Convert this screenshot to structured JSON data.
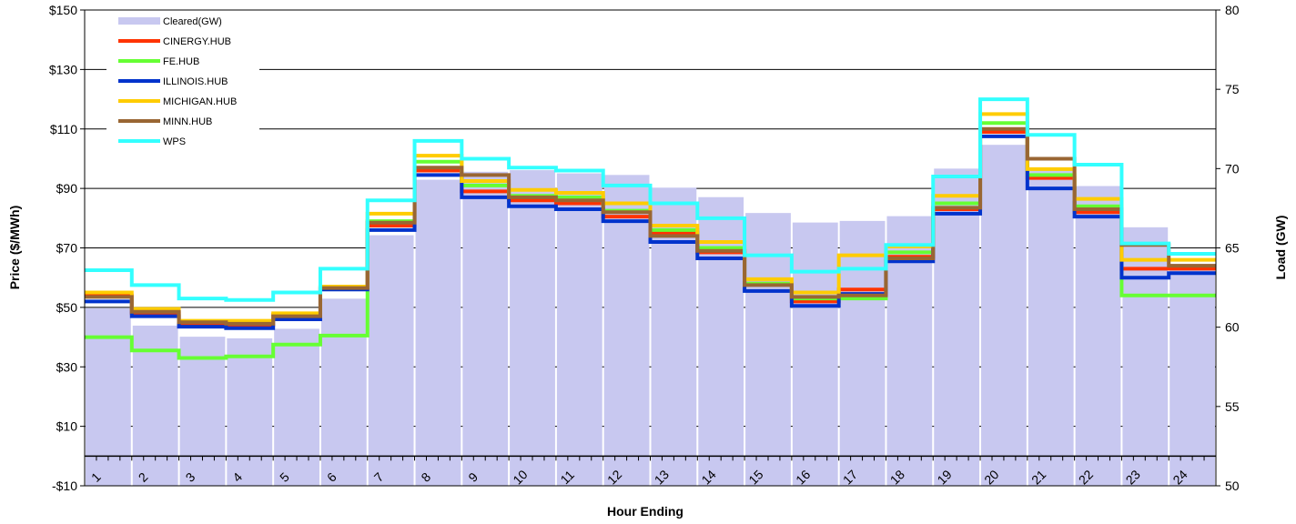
{
  "chart_data": {
    "type": "line",
    "xlabel": "Hour Ending",
    "ylabel": "Price ($/MWh)",
    "y2label": "Load (GW)",
    "ylim": [
      -10,
      150
    ],
    "y2lim": [
      50,
      80
    ],
    "xlim": [
      0.5,
      24.5
    ],
    "y_ticks": [
      "-$10",
      "$10",
      "$30",
      "$50",
      "$70",
      "$90",
      "$110",
      "$130",
      "$150"
    ],
    "y_tick_values": [
      -10,
      10,
      30,
      50,
      70,
      90,
      110,
      130,
      150
    ],
    "y2_ticks": [
      "50",
      "55",
      "60",
      "65",
      "70",
      "75",
      "80"
    ],
    "y2_tick_values": [
      50,
      55,
      60,
      65,
      70,
      75,
      80
    ],
    "categories": [
      "1",
      "2",
      "3",
      "4",
      "5",
      "6",
      "7",
      "8",
      "9",
      "10",
      "11",
      "12",
      "13",
      "14",
      "15",
      "16",
      "17",
      "18",
      "19",
      "20",
      "21",
      "22",
      "23",
      "24"
    ],
    "grid": true,
    "legend_position": "top-left",
    "cleared": {
      "name": "Cleared(GW)",
      "axis": "right",
      "color": "#c8c8f0",
      "values": [
        61.2,
        60.1,
        59.4,
        59.3,
        59.9,
        61.8,
        65.8,
        69.3,
        69.8,
        69.9,
        69.7,
        69.6,
        68.8,
        68.2,
        67.2,
        66.6,
        66.7,
        67.0,
        70.0,
        71.5,
        70.0,
        68.9,
        66.3,
        64.0
      ]
    },
    "series": [
      {
        "name": "CINERGY.HUB",
        "color": "#ff3300",
        "values": [
          54,
          48,
          44.5,
          44,
          47.5,
          56.5,
          77.5,
          96,
          89,
          86,
          85,
          80.5,
          75,
          68.5,
          58,
          52,
          56,
          67,
          83,
          109,
          93.5,
          82,
          63,
          63
        ]
      },
      {
        "name": "FE.HUB",
        "color": "#66ff33",
        "values": [
          40,
          35.5,
          33,
          33.5,
          37.5,
          40.5,
          79,
          99,
          91,
          87.5,
          87,
          82.5,
          76,
          70,
          58,
          53,
          53,
          68.5,
          85,
          112,
          94.5,
          84,
          54,
          54
        ]
      },
      {
        "name": "ILLINOIS.HUB",
        "color": "#0033cc",
        "values": [
          52,
          47,
          43.5,
          43,
          46,
          56,
          76,
          94.5,
          87,
          84,
          83,
          79,
          72,
          66.5,
          55.5,
          50.5,
          54.5,
          65.5,
          81.5,
          107.5,
          90,
          80.5,
          60,
          61.5
        ]
      },
      {
        "name": "MICHIGAN.HUB",
        "color": "#ffcc00",
        "values": [
          55,
          49.5,
          45.5,
          45.5,
          48,
          57,
          81.5,
          101,
          92.5,
          89.5,
          88.5,
          85,
          77.5,
          72,
          59.5,
          55,
          67.5,
          70.5,
          87.5,
          115,
          96.5,
          86.5,
          66,
          66
        ]
      },
      {
        "name": "MINN.HUB",
        "color": "#996633",
        "values": [
          53.5,
          48.5,
          45,
          44.5,
          47,
          56.5,
          78.5,
          97,
          94.5,
          87,
          86,
          82,
          74,
          69,
          57.5,
          53.5,
          54,
          66.5,
          83.5,
          110,
          100,
          83,
          71,
          64
        ]
      },
      {
        "name": "WPS",
        "color": "#33ffff",
        "values": [
          62.5,
          57.5,
          53,
          52.5,
          55,
          63,
          86,
          106,
          100,
          97,
          96,
          91,
          85,
          80,
          67.5,
          62,
          63,
          71,
          94,
          120,
          108,
          98,
          71.5,
          68
        ]
      }
    ]
  }
}
